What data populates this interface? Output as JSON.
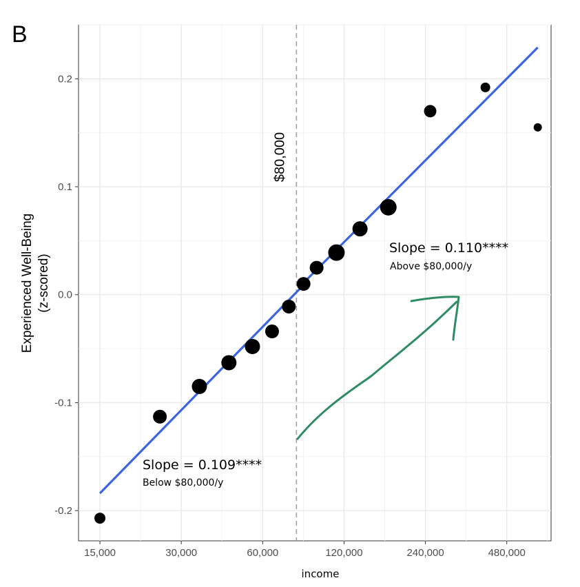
{
  "panel_label": "B",
  "chart_data": {
    "type": "scatter",
    "xlabel": "income",
    "ylabel_lines": [
      "Experienced Well-Being",
      "(z-scored)"
    ],
    "x_scale": "log",
    "xlim": [
      12500,
      700000
    ],
    "ylim": [
      -0.228,
      0.25
    ],
    "x_ticks": [
      {
        "value": 15000,
        "label": "15,000"
      },
      {
        "value": 30000,
        "label": "30,000"
      },
      {
        "value": 60000,
        "label": "60,000"
      },
      {
        "value": 120000,
        "label": "120,000"
      },
      {
        "value": 240000,
        "label": "240,000"
      },
      {
        "value": 480000,
        "label": "480,000"
      }
    ],
    "y_ticks": [
      {
        "value": 0.2,
        "label": "0.2"
      },
      {
        "value": 0.1,
        "label": "0.1"
      },
      {
        "value": 0.0,
        "label": "0.0"
      },
      {
        "value": -0.1,
        "label": "-0.1"
      },
      {
        "value": -0.2,
        "label": "-0.2"
      }
    ],
    "grid": true,
    "points": [
      {
        "income": 15000,
        "wellbeing": -0.207,
        "size": 8
      },
      {
        "income": 25000,
        "wellbeing": -0.113,
        "size": 10
      },
      {
        "income": 35000,
        "wellbeing": -0.085,
        "size": 11
      },
      {
        "income": 45000,
        "wellbeing": -0.063,
        "size": 11
      },
      {
        "income": 55000,
        "wellbeing": -0.048,
        "size": 11
      },
      {
        "income": 65000,
        "wellbeing": -0.034,
        "size": 10
      },
      {
        "income": 75000,
        "wellbeing": -0.011,
        "size": 10
      },
      {
        "income": 85000,
        "wellbeing": 0.01,
        "size": 10
      },
      {
        "income": 95000,
        "wellbeing": 0.025,
        "size": 10
      },
      {
        "income": 112500,
        "wellbeing": 0.039,
        "size": 12
      },
      {
        "income": 137500,
        "wellbeing": 0.061,
        "size": 11
      },
      {
        "income": 175000,
        "wellbeing": 0.081,
        "size": 12
      },
      {
        "income": 250000,
        "wellbeing": 0.17,
        "size": 9
      },
      {
        "income": 400000,
        "wellbeing": 0.192,
        "size": 7
      },
      {
        "income": 625000,
        "wellbeing": 0.155,
        "size": 6
      }
    ],
    "fit_lines": [
      {
        "name": "below",
        "x": [
          15000,
          85000
        ],
        "y": [
          -0.184,
          0.009
        ],
        "color": "#3a65de"
      },
      {
        "name": "above",
        "x": [
          85000,
          625000
        ],
        "y": [
          0.011,
          0.229
        ],
        "color": "#3a65de"
      }
    ],
    "threshold": {
      "value": 80000,
      "label": "$80,000"
    },
    "annotations": [
      {
        "id": "above",
        "slope": "Slope = 0.110****",
        "note": "Above $80,000/y"
      },
      {
        "id": "below",
        "slope": "Slope = 0.109****",
        "note": "Below $80,000/y"
      }
    ],
    "arrow_color": "#2e8b63"
  }
}
